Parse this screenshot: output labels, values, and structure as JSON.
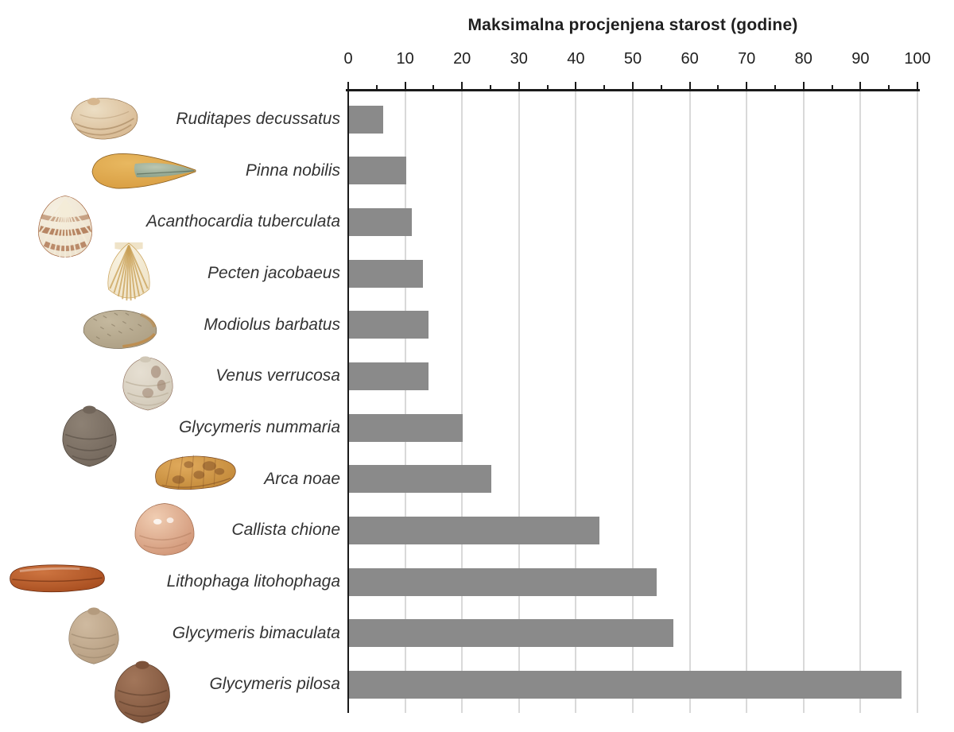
{
  "figure_title": "Maksimalna procjenjena starost (godine)",
  "chart_data": {
    "type": "bar",
    "orientation": "horizontal",
    "title": "Maksimalna procjenjena starost (godine)",
    "xlabel": "Maksimalna procjenjena starost (godine)",
    "value_unit": "godine",
    "xlim": [
      0,
      100
    ],
    "x_ticks": [
      0,
      10,
      20,
      30,
      40,
      50,
      60,
      70,
      80,
      90,
      100
    ],
    "minor_tick_step": 5,
    "grid": true,
    "legend": false,
    "bar_color": "#8a8a8a",
    "gridline_color": "#d9d9d9",
    "axis_color": "#1a1a1a",
    "categories": [
      "Ruditapes decussatus",
      "Pinna nobilis",
      "Acanthocardia tuberculata",
      "Pecten jacobaeus",
      "Modiolus barbatus",
      "Venus verrucosa",
      "Glycymeris nummaria",
      "Arca noae",
      "Callista chione",
      "Lithophaga litohophaga",
      "Glycymeris bimaculata",
      "Glycymeris pilosa"
    ],
    "values": [
      6,
      10,
      11,
      13,
      14,
      14,
      20,
      25,
      44,
      54,
      57,
      97
    ],
    "rows": [
      {
        "label": "Ruditapes decussatus",
        "value": 6,
        "icon": "ruditapes-decussatus-shell-icon",
        "shape": "clam",
        "colors": [
          "#d6b68e",
          "#96744c",
          "#ecdec4"
        ]
      },
      {
        "label": "Pinna nobilis",
        "value": 10,
        "icon": "pinna-nobilis-shell-icon",
        "shape": "pinna",
        "colors": [
          "#d79b3f",
          "#8a5e1e",
          "#b9c8b6"
        ]
      },
      {
        "label": "Acanthocardia tuberculata",
        "value": 11,
        "icon": "acanthocardia-tuberculata-shell-icon",
        "shape": "cockle",
        "colors": [
          "#ece1cd",
          "#9e5b32",
          "#f6f0e2"
        ]
      },
      {
        "label": "Pecten jacobaeus",
        "value": 13,
        "icon": "pecten-jacobaeus-shell-icon",
        "shape": "scallop",
        "colors": [
          "#efe3c8",
          "#c9a055",
          "#f8f2e0"
        ]
      },
      {
        "label": "Modiolus barbatus",
        "value": 14,
        "icon": "modiolus-barbatus-shell-icon",
        "shape": "mussel",
        "colors": [
          "#ab9d82",
          "#7d7059",
          "#c4b89e"
        ]
      },
      {
        "label": "Venus verrucosa",
        "value": 14,
        "icon": "venus-verrucosa-shell-icon",
        "shape": "venus",
        "colors": [
          "#d0c7b6",
          "#8f6f5c",
          "#e6dfd2"
        ]
      },
      {
        "label": "Glycymeris nummaria",
        "value": 20,
        "icon": "glycymeris-nummaria-shell-icon",
        "shape": "glycymeris",
        "colors": [
          "#71655a",
          "#483f36",
          "#8d8174"
        ]
      },
      {
        "label": "Arca noae",
        "value": 25,
        "icon": "arca-noae-shell-icon",
        "shape": "ark",
        "colors": [
          "#c08636",
          "#74431f",
          "#e0aa5c"
        ]
      },
      {
        "label": "Callista chione",
        "value": 44,
        "icon": "callista-chione-shell-icon",
        "shape": "smooth",
        "colors": [
          "#cf9273",
          "#a06a4c",
          "#f0cdb2"
        ]
      },
      {
        "label": "Lithophaga litohophaga",
        "value": 54,
        "icon": "lithophaga-litohophaga-shell-icon",
        "shape": "cigar",
        "colors": [
          "#a54b1d",
          "#67290e",
          "#cd7440"
        ]
      },
      {
        "label": "Glycymeris bimaculata",
        "value": 57,
        "icon": "glycymeris-bimaculata-shell-icon",
        "shape": "glycymeris",
        "colors": [
          "#b49b7e",
          "#8b7860",
          "#cfbaa0"
        ]
      },
      {
        "label": "Glycymeris pilosa",
        "value": 97,
        "icon": "glycymeris-pilosa-shell-icon",
        "shape": "glycymeris",
        "colors": [
          "#7c523a",
          "#4e3322",
          "#a2765a"
        ]
      }
    ]
  }
}
